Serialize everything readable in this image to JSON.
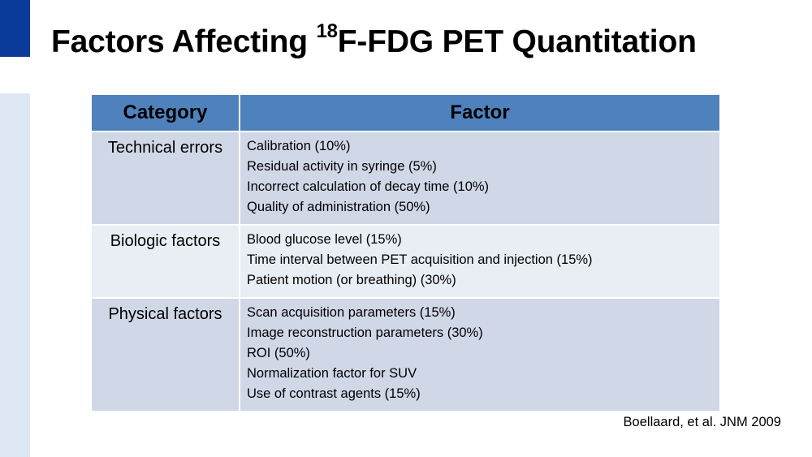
{
  "title": {
    "prefix": "Factors Affecting ",
    "superscript": "18",
    "suffix": "F-FDG PET Quantitation"
  },
  "table": {
    "headers": [
      "Category",
      "Factor"
    ],
    "rows": [
      {
        "category": "Technical errors",
        "factors": [
          "Calibration (10%)",
          "Residual activity in syringe (5%)",
          "Incorrect calculation of decay time (10%)",
          "Quality of administration (50%)"
        ]
      },
      {
        "category": "Biologic factors",
        "factors": [
          "Blood glucose level (15%)",
          "Time interval between PET acquisition and injection (15%)",
          "Patient motion (or breathing) (30%)"
        ]
      },
      {
        "category": "Physical factors",
        "factors": [
          "Scan acquisition parameters (15%)",
          "Image reconstruction parameters (30%)",
          "ROI (50%)",
          "Normalization factor for SUV",
          "Use of contrast agents (15%)"
        ]
      }
    ]
  },
  "citation": "Boellaard, et al. JNM 2009",
  "colors": {
    "header_bg": "#4f81bd",
    "row_dark": "#d0d8e8",
    "row_light": "#e9edf4",
    "accent_dark": "#0b3a9a",
    "accent_light": "#dde8f4"
  }
}
